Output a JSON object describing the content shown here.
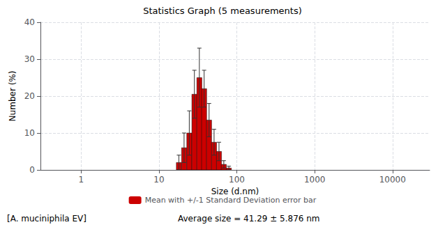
{
  "chart_data": {
    "type": "bar",
    "title": "Statistics Graph (5 measurements)",
    "xlabel": "Size (d.nm)",
    "ylabel": "Number (%)",
    "x": [
      18.0,
      21.0,
      24.5,
      28.5,
      33.0,
      38.0,
      44.0,
      51.0,
      59.0,
      68.0,
      79.0
    ],
    "series": [
      {
        "name": "Mean with +/-1 Standard Deviation error bar",
        "color": "#cc0000",
        "values": [
          2.0,
          6.0,
          10.0,
          20.5,
          25.0,
          22.0,
          13.5,
          7.5,
          5.0,
          1.5,
          0.5
        ],
        "errors": [
          2.0,
          4.0,
          6.0,
          6.5,
          8.0,
          5.0,
          4.5,
          3.5,
          2.5,
          1.0,
          0.5
        ]
      }
    ],
    "xlim": [
      0.3,
      30000
    ],
    "xticks": [
      1,
      10,
      100,
      1000,
      10000
    ],
    "ylim": [
      0,
      40
    ],
    "yticks": [
      0,
      10,
      20,
      30,
      40
    ],
    "log": "x",
    "grid": true,
    "legend": "bottom",
    "annotations": [
      "[A. muciniphila EV]",
      "Average size = 41.29 ± 5.876 nm"
    ]
  }
}
